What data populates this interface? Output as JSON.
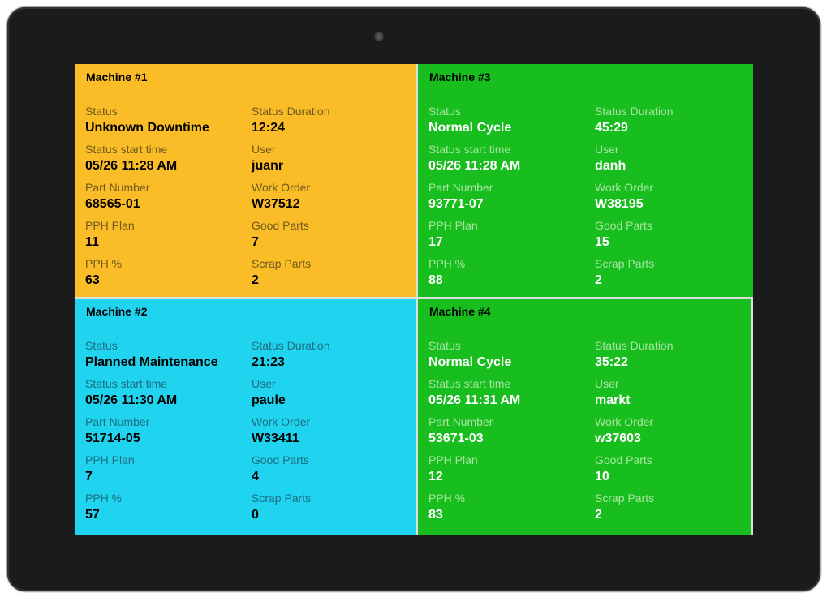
{
  "colors": {
    "downtime": "#fbbd27",
    "maintenance": "#20d3ee",
    "normal": "#18bd1e"
  },
  "labels": {
    "status": "Status",
    "status_duration": "Status Duration",
    "status_start_time": "Status start time",
    "user": "User",
    "part_number": "Part Number",
    "work_order": "Work Order",
    "pph_plan": "PPH Plan",
    "good_parts": "Good Parts",
    "pph_percent": "PPH %",
    "scrap_parts": "Scrap Parts"
  },
  "machines": [
    {
      "title": "Machine #1",
      "theme": "yellow",
      "status": "Unknown Downtime",
      "status_duration": "12:24",
      "status_start_time": "05/26 11:28 AM",
      "user": "juanr",
      "part_number": "68565-01",
      "work_order": "W37512",
      "pph_plan": "11",
      "good_parts": "7",
      "pph_percent": "63",
      "scrap_parts": "2"
    },
    {
      "title": "Machine #3",
      "theme": "green",
      "status": "Normal Cycle",
      "status_duration": "45:29",
      "status_start_time": "05/26 11:28 AM",
      "user": "danh",
      "part_number": "93771-07",
      "work_order": "W38195",
      "pph_plan": "17",
      "good_parts": "15",
      "pph_percent": "88",
      "scrap_parts": "2"
    },
    {
      "title": "Machine #2",
      "theme": "cyan",
      "status": "Planned Maintenance",
      "status_duration": "21:23",
      "status_start_time": "05/26 11:30 AM",
      "user": "paule",
      "part_number": "51714-05",
      "work_order": "W33411",
      "pph_plan": "7",
      "good_parts": "4",
      "pph_percent": "57",
      "scrap_parts": "0"
    },
    {
      "title": "Machine #4",
      "theme": "green",
      "status": "Normal Cycle",
      "status_duration": "35:22",
      "status_start_time": "05/26 11:31 AM",
      "user": "markt",
      "part_number": "53671-03",
      "work_order": "w37603",
      "pph_plan": "12",
      "good_parts": "10",
      "pph_percent": "83",
      "scrap_parts": "2"
    }
  ]
}
